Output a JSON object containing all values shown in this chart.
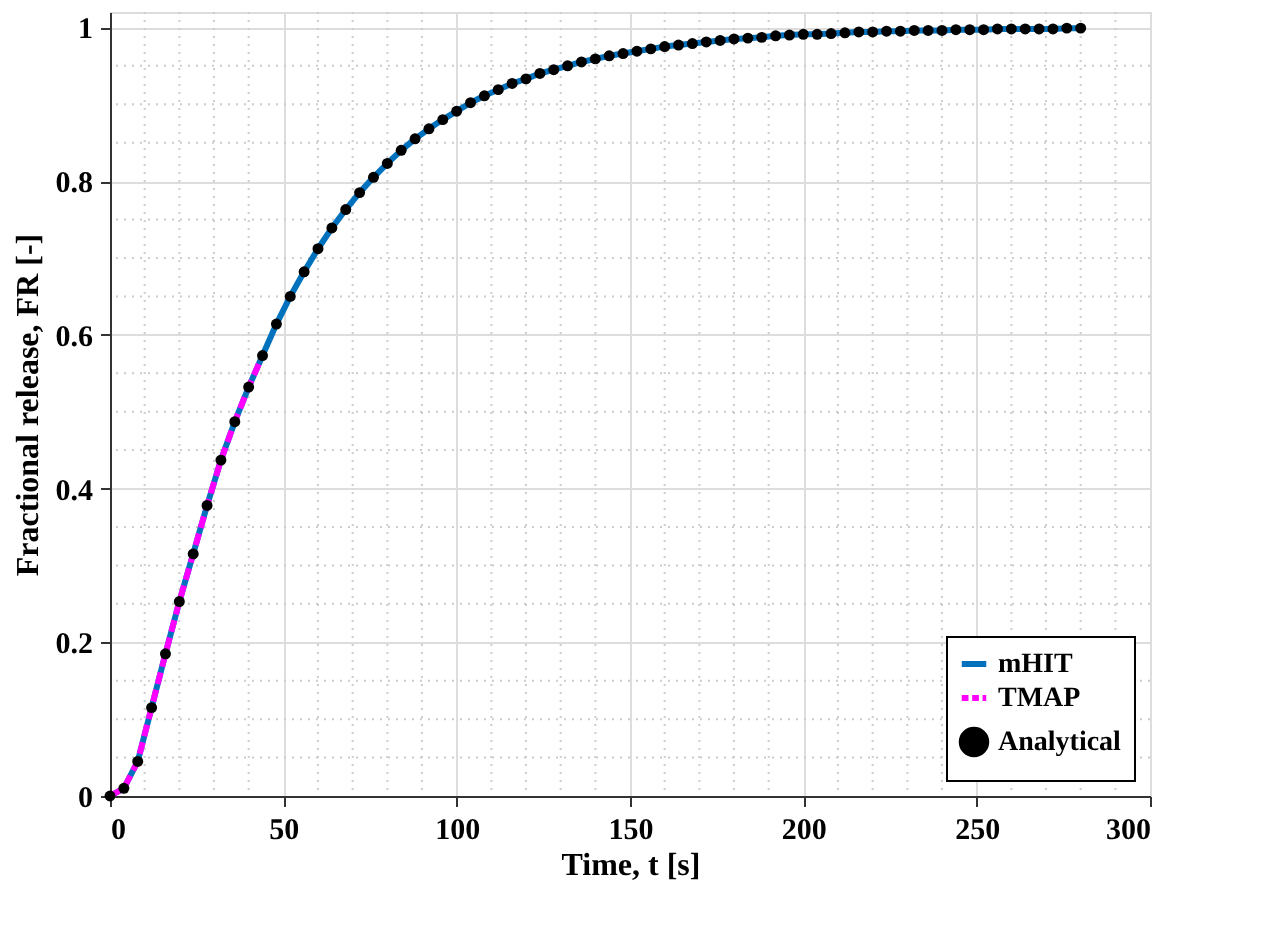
{
  "chart_data": {
    "type": "line",
    "xlabel": "Time, t [s]",
    "ylabel": "Fractional release, FR [-]",
    "xlim": [
      0,
      300
    ],
    "ylim": [
      0,
      1.02
    ],
    "xticks": [
      0,
      50,
      100,
      150,
      200,
      250,
      300
    ],
    "yticks": [
      0,
      0.2,
      0.4,
      0.6,
      0.8,
      1
    ],
    "grid": true,
    "legend": "bottom right",
    "series": [
      {
        "name": "mHIT",
        "line_style": "solid",
        "color": "#0072bd",
        "x": [
          0,
          4,
          8,
          12,
          16,
          20,
          24,
          28,
          32,
          36,
          40,
          44,
          48,
          52,
          56,
          60,
          64,
          68,
          72,
          76,
          80,
          84,
          88,
          92,
          96,
          100,
          104,
          108,
          112,
          116,
          120,
          124,
          128,
          132,
          136,
          140,
          144,
          148,
          152,
          156,
          160,
          164,
          168,
          172,
          176,
          180,
          184,
          188,
          192,
          196,
          200,
          204,
          208,
          212,
          216,
          220,
          224,
          228,
          232,
          236,
          240,
          244,
          248,
          252,
          256,
          260,
          264,
          268,
          272,
          276,
          280
        ],
        "values": [
          0,
          0.01,
          0.045,
          0.115,
          0.185,
          0.253,
          0.315,
          0.378,
          0.437,
          0.487,
          0.532,
          0.573,
          0.614,
          0.65,
          0.682,
          0.712,
          0.739,
          0.763,
          0.785,
          0.805,
          0.823,
          0.84,
          0.855,
          0.868,
          0.88,
          0.891,
          0.902,
          0.911,
          0.919,
          0.927,
          0.933,
          0.94,
          0.945,
          0.95,
          0.955,
          0.959,
          0.963,
          0.966,
          0.969,
          0.972,
          0.975,
          0.977,
          0.979,
          0.981,
          0.983,
          0.985,
          0.986,
          0.987,
          0.989,
          0.99,
          0.991,
          0.991,
          0.992,
          0.993,
          0.994,
          0.994,
          0.995,
          0.995,
          0.996,
          0.996,
          0.996,
          0.997,
          0.997,
          0.997,
          0.998,
          0.998,
          0.998,
          0.998,
          0.998,
          0.999,
          0.999
        ]
      },
      {
        "name": "TMAP",
        "line_style": "dashed",
        "color": "#ff00ff",
        "x": [
          0,
          4,
          8,
          12,
          16,
          20,
          24,
          28,
          32,
          36,
          40,
          44
        ],
        "values": [
          0,
          0.01,
          0.045,
          0.115,
          0.185,
          0.253,
          0.315,
          0.378,
          0.437,
          0.487,
          0.532,
          0.573
        ]
      },
      {
        "name": "Analytical",
        "type": "scatter",
        "marker": "circle",
        "color": "#000000",
        "x": [
          0,
          4,
          8,
          12,
          16,
          20,
          24,
          28,
          32,
          36,
          40,
          44,
          48,
          52,
          56,
          60,
          64,
          68,
          72,
          76,
          80,
          84,
          88,
          92,
          96,
          100,
          104,
          108,
          112,
          116,
          120,
          124,
          128,
          132,
          136,
          140,
          144,
          148,
          152,
          156,
          160,
          164,
          168,
          172,
          176,
          180,
          184,
          188,
          192,
          196,
          200,
          204,
          208,
          212,
          216,
          220,
          224,
          228,
          232,
          236,
          240,
          244,
          248,
          252,
          256,
          260,
          264,
          268,
          272,
          276,
          280
        ],
        "values": [
          0,
          0.01,
          0.045,
          0.115,
          0.185,
          0.253,
          0.315,
          0.378,
          0.437,
          0.487,
          0.532,
          0.573,
          0.614,
          0.65,
          0.682,
          0.712,
          0.739,
          0.763,
          0.785,
          0.805,
          0.823,
          0.84,
          0.855,
          0.868,
          0.88,
          0.891,
          0.902,
          0.911,
          0.919,
          0.927,
          0.933,
          0.94,
          0.945,
          0.95,
          0.955,
          0.959,
          0.963,
          0.966,
          0.969,
          0.972,
          0.975,
          0.977,
          0.979,
          0.981,
          0.983,
          0.985,
          0.986,
          0.987,
          0.989,
          0.99,
          0.991,
          0.991,
          0.992,
          0.993,
          0.994,
          0.994,
          0.995,
          0.995,
          0.996,
          0.996,
          0.996,
          0.997,
          0.997,
          0.997,
          0.998,
          0.998,
          0.998,
          0.998,
          0.998,
          0.999,
          0.999
        ]
      }
    ]
  }
}
